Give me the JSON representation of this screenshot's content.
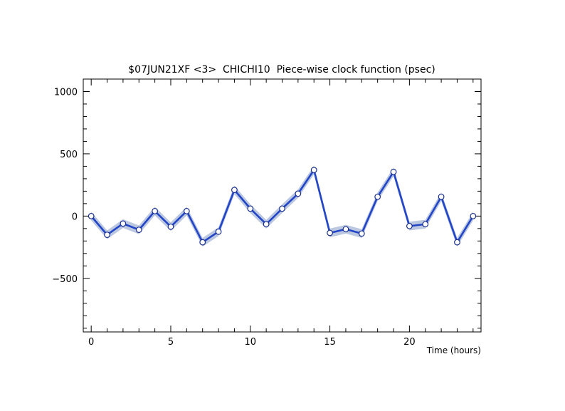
{
  "chart_data": {
    "type": "line",
    "title": "$07JUN21XF <3>  CHICHI10  Piece-wise clock function (psec)",
    "xlabel": "Time (hours)",
    "ylabel": "",
    "xlim": [
      -0.5,
      24.5
    ],
    "ylim": [
      -930,
      1100
    ],
    "x_ticks": [
      0,
      5,
      10,
      15,
      20
    ],
    "x_tick_labels": [
      "0",
      "5",
      "10",
      "15",
      "20"
    ],
    "y_ticks": [
      -500,
      0,
      500,
      1000
    ],
    "y_tick_labels": [
      "−500",
      "0",
      "500",
      "1000"
    ],
    "grid": false,
    "line_color": "#2345c8",
    "band_color": "#b4c2dc",
    "marker_fill": "#ffffff",
    "marker_edge": "#1a2f8c",
    "series": [
      {
        "x": [
          0,
          1,
          2,
          3,
          4,
          5,
          6,
          7,
          8,
          9,
          10,
          11,
          12,
          13,
          14,
          15,
          16,
          17,
          18,
          19,
          20,
          21,
          22,
          23,
          24
        ],
        "values": [
          0,
          -150,
          -60,
          -110,
          40,
          -85,
          40,
          -210,
          -125,
          210,
          60,
          -65,
          60,
          180,
          370,
          -135,
          -105,
          -140,
          155,
          355,
          -80,
          -65,
          155,
          -210,
          0
        ],
        "band": 35
      }
    ]
  }
}
